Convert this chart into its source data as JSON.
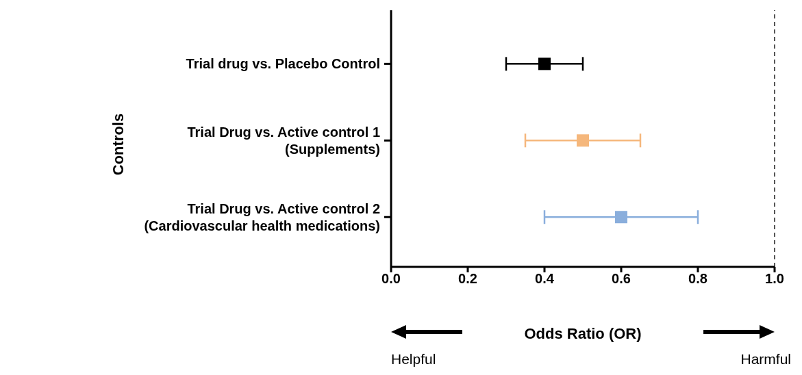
{
  "chart_data": {
    "type": "scatter",
    "orientation": "horizontal",
    "categories": [
      "Trial drug vs. Placebo Control",
      "Trial Drug vs. Active control 1\n(Supplements)",
      "Trial Drug vs. Active control 2\n(Cardiovascular health medications)"
    ],
    "values": [
      0.4,
      0.5,
      0.6
    ],
    "errors": [
      [
        0.3,
        0.5
      ],
      [
        0.35,
        0.65
      ],
      [
        0.4,
        0.8
      ]
    ],
    "colors": [
      "#000000",
      "#f5b77c",
      "#8aaedc"
    ],
    "marker": "square",
    "grid": false,
    "xlabel": "Odds Ratio (OR)",
    "ylabel": "Controls",
    "xlim": [
      0,
      1
    ],
    "xticks": [
      {
        "value": 0,
        "label": "0.0"
      },
      {
        "value": 0.2,
        "label": "0.2"
      },
      {
        "value": 0.4,
        "label": "0.4"
      },
      {
        "value": 0.6,
        "label": "0.6"
      },
      {
        "value": 0.8,
        "label": "0.8"
      },
      {
        "value": 1,
        "label": "1.0"
      }
    ],
    "ref_lines": [
      {
        "axis": "x",
        "value": 1,
        "line_style": "dashed",
        "color": "#555555"
      }
    ],
    "annotations": [
      "Helpful",
      "Harmful"
    ]
  }
}
